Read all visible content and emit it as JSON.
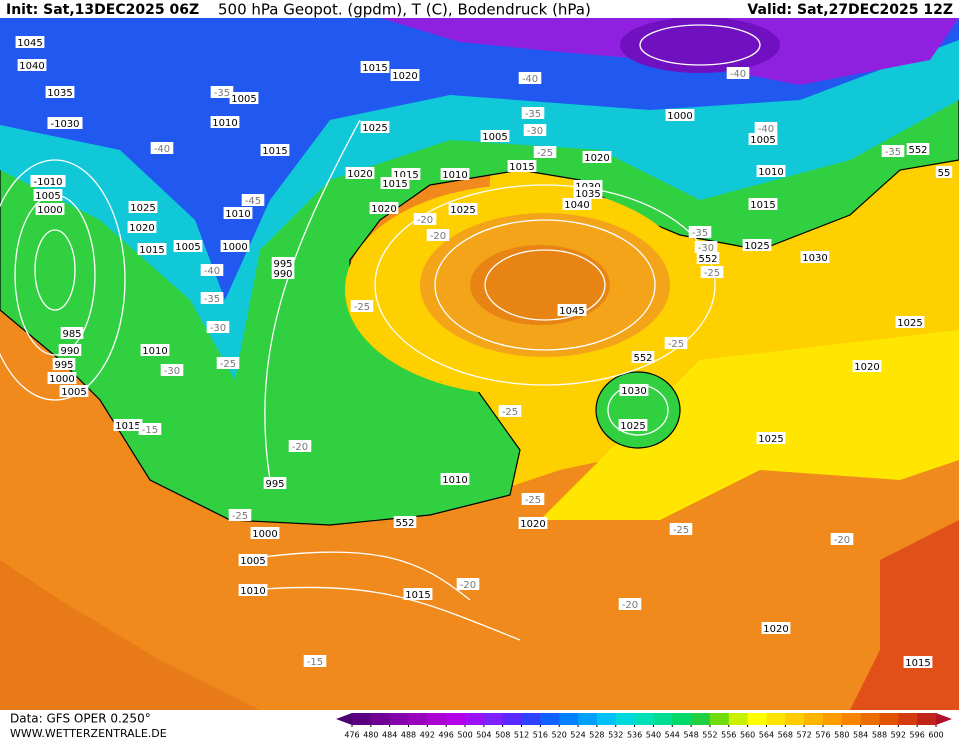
{
  "header": {
    "init": "Init: Sat,13DEC2025 06Z",
    "title": "500 hPa Geopot. (gpdm), T (C), Bodendruck (hPa)",
    "valid": "Valid: Sat,27DEC2025 12Z"
  },
  "labels": [
    "1045",
    "1040",
    "1035",
    "-1030",
    "-40",
    "-1010",
    "1005",
    "1000",
    "1025",
    "1020",
    "1015",
    "1005",
    "1000",
    "-40",
    "-35",
    "-30",
    "-25",
    "995",
    "990",
    "985",
    "990",
    "995",
    "1000",
    "1005",
    "1010",
    "-30",
    "1015",
    "-15",
    "-20",
    "995",
    "-25",
    "1000",
    "1005",
    "1010",
    "1015",
    "-20",
    "-15",
    "1010",
    "552",
    "-25",
    "1020",
    "-25",
    "-25",
    "1015",
    "1020",
    "-35",
    "1005",
    "1010",
    "1015",
    "-45",
    "1010",
    "1025",
    "1020",
    "1015",
    "1015",
    "1010",
    "1020",
    "-20",
    "-20",
    "1025",
    "1015",
    "-40",
    "-35",
    "-30",
    "-25",
    "1005",
    "1020",
    "1030",
    "1035",
    "1040",
    "1045",
    "552",
    "1030",
    "1025",
    "-25",
    "-25",
    "-20",
    "1020",
    "1015",
    "-20",
    "1025",
    "1020",
    "1025",
    "1030",
    "1025",
    "-35",
    "-30",
    "552",
    "-25",
    "1015",
    "1010",
    "1000",
    "1005",
    "-40",
    "-40",
    "-35",
    "552",
    "55"
  ],
  "colorbar": {
    "values": [
      476,
      480,
      484,
      488,
      492,
      496,
      500,
      504,
      508,
      512,
      516,
      520,
      524,
      528,
      532,
      536,
      540,
      544,
      548,
      552,
      556,
      560,
      564,
      568,
      572,
      576,
      580,
      584,
      588,
      592,
      596,
      600
    ],
    "colors": [
      "#4a0070",
      "#5c0082",
      "#700094",
      "#8400a8",
      "#9800bc",
      "#ac00d0",
      "#b400e8",
      "#9c10f4",
      "#7c20fc",
      "#5828ff",
      "#3040ff",
      "#1060ff",
      "#0080ff",
      "#00a0ff",
      "#00c0f8",
      "#00d8e0",
      "#00e0b8",
      "#00dc90",
      "#00d868",
      "#20d040",
      "#70dc10",
      "#c8f000",
      "#ffff00",
      "#ffe400",
      "#ffcc00",
      "#ffb400",
      "#ff9c00",
      "#f88400",
      "#ec6c00",
      "#e05400",
      "#d43c10",
      "#c02418",
      "#b01028"
    ]
  },
  "footer": {
    "data": "Data: GFS OPER 0.250°",
    "site": "WWW.WETTERZENTRALE.DE"
  }
}
